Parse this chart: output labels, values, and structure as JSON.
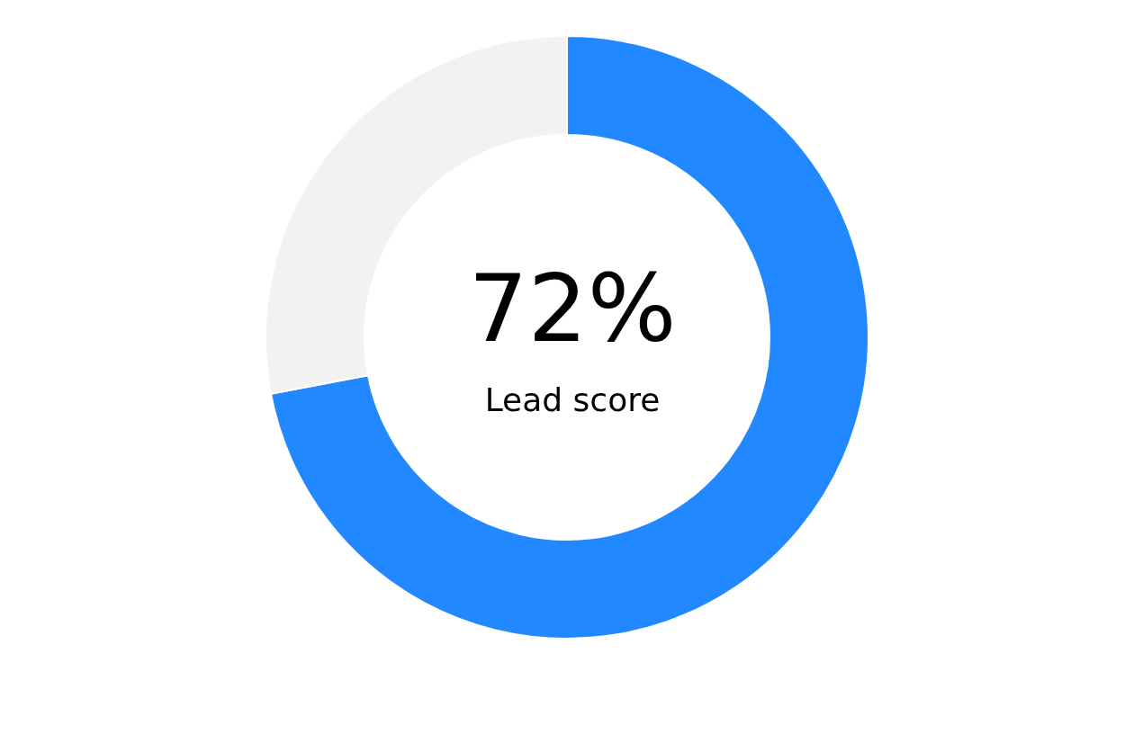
{
  "chart_data": {
    "type": "donut",
    "categories": [
      null,
      null
    ],
    "values": [
      72,
      28
    ],
    "colors": [
      "#2188ff",
      "#f2f2f2"
    ],
    "value_labels": [
      "72%",
      null
    ],
    "annotations": [
      "Lead score"
    ]
  }
}
